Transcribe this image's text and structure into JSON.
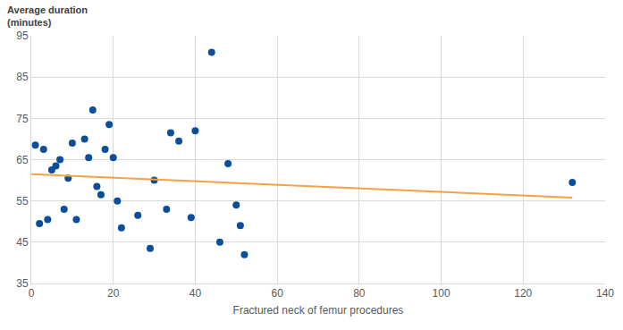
{
  "chart_data": {
    "type": "scatter",
    "ylabel": "Average duration\n(minutes)",
    "xlabel": "Fractured neck of femur procedures",
    "xlim": [
      0,
      140
    ],
    "xticks": [
      0,
      20,
      40,
      60,
      80,
      100,
      120,
      140
    ],
    "ylim": [
      35,
      95
    ],
    "yticks": [
      35,
      45,
      55,
      65,
      75,
      85,
      95
    ],
    "grid": true,
    "series": [
      {
        "type": "scatter",
        "marker": "circle",
        "color": "#0b4f9c",
        "x": [
          1,
          2,
          3,
          4,
          5,
          6,
          7,
          8,
          9,
          10,
          11,
          13,
          14,
          15,
          16,
          17,
          18,
          19,
          20,
          21,
          22,
          26,
          29,
          30,
          33,
          34,
          36,
          39,
          40,
          44,
          46,
          48,
          50,
          51,
          52,
          132
        ],
        "values": [
          68.5,
          49.5,
          67.5,
          50.5,
          62.5,
          63.5,
          65,
          53,
          60.5,
          69,
          50.5,
          70,
          65.5,
          77,
          58.5,
          56.5,
          67.5,
          73.5,
          65.5,
          55,
          48.5,
          51.5,
          43.5,
          60,
          53,
          71.5,
          69.5,
          51,
          72,
          91,
          45,
          64,
          54,
          49,
          42,
          59.5
        ]
      },
      {
        "type": "line",
        "line_style": "solid",
        "color": "#f5a244",
        "x": [
          0,
          132
        ],
        "values": [
          61.5,
          55.8
        ]
      }
    ]
  }
}
